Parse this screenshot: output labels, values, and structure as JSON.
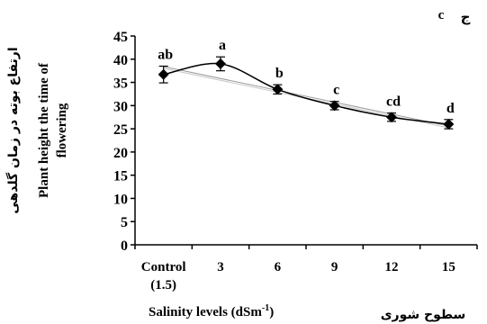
{
  "chart_data": {
    "type": "line",
    "panel_label": "c",
    "panel_label_fa": "ج",
    "ylabel_fa": "ارتفاع بوته در زمان گلدهی",
    "ylabel_en_line1": "Plant height the time of",
    "ylabel_en_line2": "flowering",
    "xlabel_fa": "سطوح شوری",
    "xlabel_en_main": "Salinity levels (dSm",
    "xlabel_en_sup": "-1",
    "xlabel_en_end": ")",
    "categories": [
      "Control (1.5)",
      "3",
      "6",
      "9",
      "12",
      "15"
    ],
    "tick_labels": [
      [
        "Control",
        "(1.5)"
      ],
      [
        "3"
      ],
      [
        "6"
      ],
      [
        "9"
      ],
      [
        "12"
      ],
      [
        "15"
      ]
    ],
    "series": [
      {
        "values": [
          36.7,
          39.0,
          33.5,
          30.0,
          27.5,
          26.0
        ],
        "errors": [
          1.8,
          1.5,
          1.0,
          0.9,
          0.9,
          1.0
        ],
        "letters": [
          "ab",
          "a",
          "b",
          "c",
          "cd",
          "d"
        ]
      }
    ],
    "trendline": {
      "start": 38.4,
      "end": 25.6
    },
    "ylim": [
      0,
      45
    ],
    "yticks": [
      0,
      5,
      10,
      15,
      20,
      25,
      30,
      35,
      40,
      45
    ],
    "grid": false,
    "colors": {
      "line": "#000000",
      "marker": "#000000",
      "trend": "#9a9a9a"
    }
  }
}
